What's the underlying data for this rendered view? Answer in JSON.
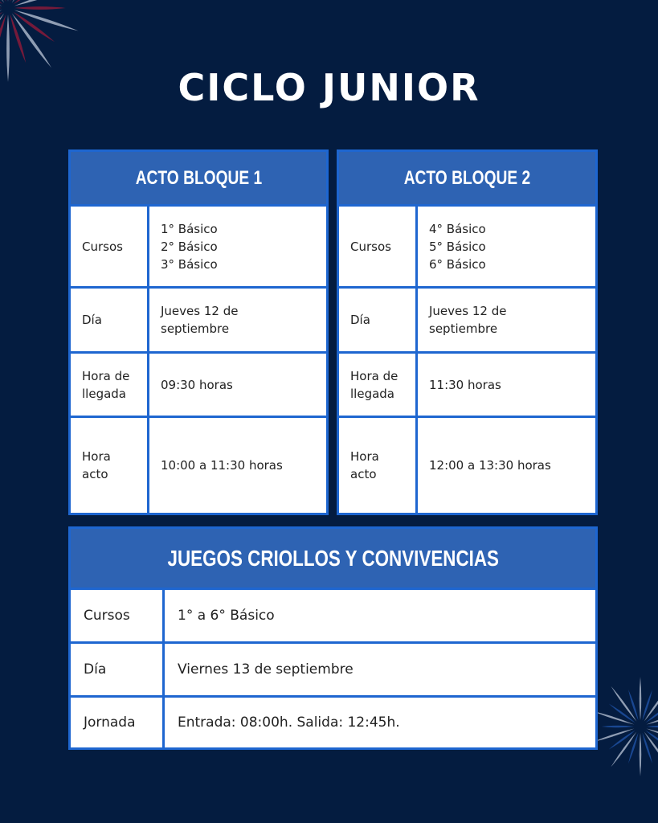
{
  "title": "CICLO JUNIOR",
  "colors": {
    "background": "#041c40",
    "header": "#2e63b3",
    "border": "#1e66d0"
  },
  "decorations": [
    "firework-icon-red-white",
    "firework-icon-blue-white"
  ],
  "bloque1": {
    "header": "ACTO BLOQUE 1",
    "rows": [
      {
        "label": "Cursos",
        "value": "1° Básico\n2° Básico\n3° Básico"
      },
      {
        "label": "Día",
        "value": "Jueves 12 de\nseptiembre"
      },
      {
        "label": "Hora de\nllegada",
        "value": "09:30 horas"
      },
      {
        "label": "Hora\nacto",
        "value": "10:00 a 11:30 horas"
      }
    ]
  },
  "bloque2": {
    "header": "ACTO BLOQUE 2",
    "rows": [
      {
        "label": "Cursos",
        "value": "4° Básico\n5° Básico\n6° Básico"
      },
      {
        "label": "Día",
        "value": "Jueves 12 de\nseptiembre"
      },
      {
        "label": "Hora de\nllegada",
        "value": "11:30 horas"
      },
      {
        "label": "Hora\nacto",
        "value": "12:00 a 13:30 horas"
      }
    ]
  },
  "juegos": {
    "header": "JUEGOS CRIOLLOS Y CONVIVENCIAS",
    "rows": [
      {
        "label": "Cursos",
        "value": "1° a 6° Básico"
      },
      {
        "label": "Día",
        "value": "Viernes 13 de septiembre"
      },
      {
        "label": "Jornada",
        "value": "Entrada: 08:00h.  Salida: 12:45h."
      }
    ]
  }
}
